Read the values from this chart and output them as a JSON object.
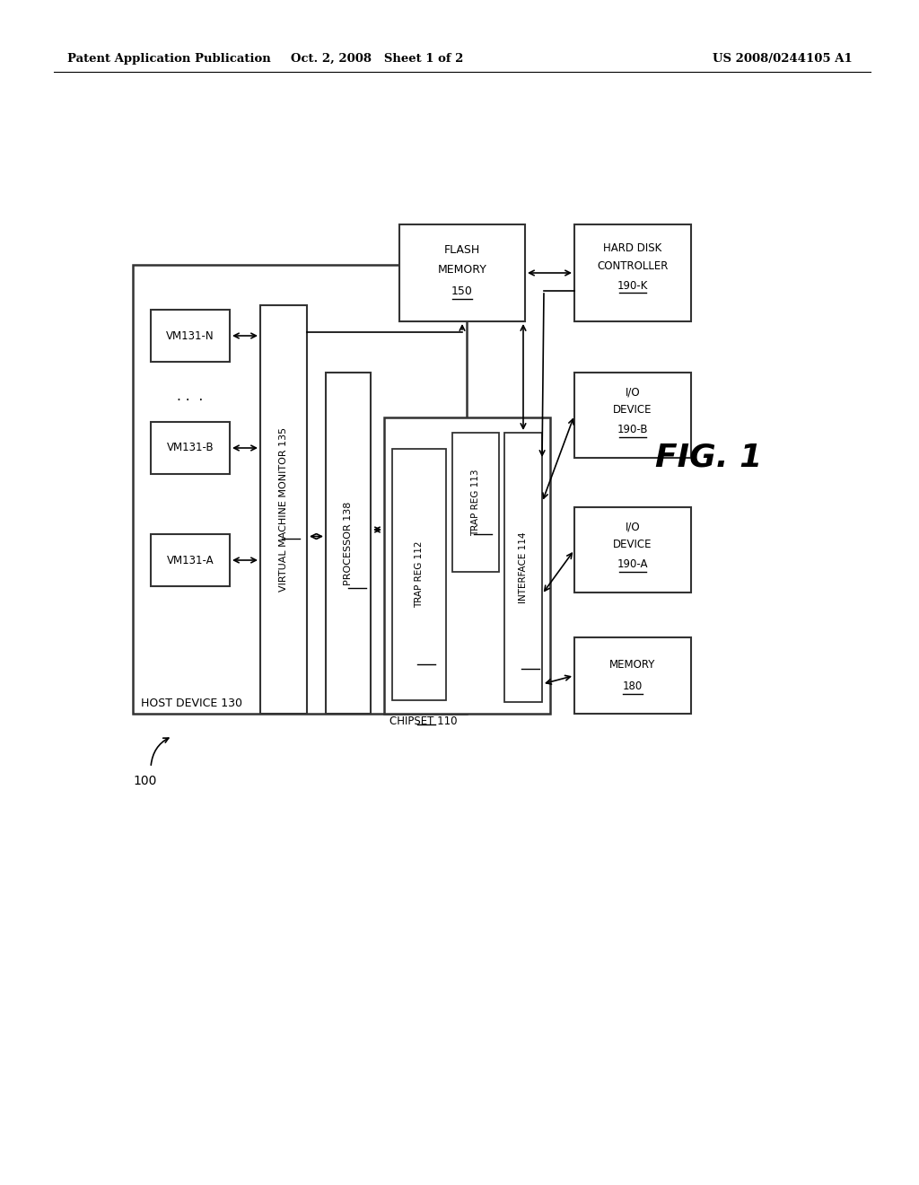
{
  "background_color": "#ffffff",
  "header_left": "Patent Application Publication",
  "header_center": "Oct. 2, 2008   Sheet 1 of 2",
  "header_right": "US 2008/0244105 A1",
  "fig_label": "FIG. 1",
  "system_label": "100",
  "host_device_label": "HOST DEVICE 130",
  "chipset_label": "CHIPSET 110",
  "vmm_label": "VIRTUAL MACHINE MONITOR 135",
  "processor_label": "PROCESSOR 138",
  "vm_n_label": "VM131-N",
  "vm_b_label": "VM131-B",
  "vm_a_label": "VM131-A",
  "trap_reg_112_label": "TRAP REG 112",
  "trap_reg_113_label": "TRAP REG 113",
  "interface_label": "INTERFACE 114",
  "flash_memory_line1": "FLASH",
  "flash_memory_line2": "MEMORY",
  "flash_memory_line3": "150",
  "hard_disk_line1": "HARD DISK",
  "hard_disk_line2": "CONTROLLER",
  "hard_disk_line3": "190-K",
  "io_device_b_line1": "I/O",
  "io_device_b_line2": "DEVICE",
  "io_device_b_line3": "190-B",
  "io_device_a_line1": "I/O",
  "io_device_a_line2": "DEVICE",
  "io_device_a_line3": "190-A",
  "memory_line1": "MEMORY",
  "memory_line2": "180"
}
